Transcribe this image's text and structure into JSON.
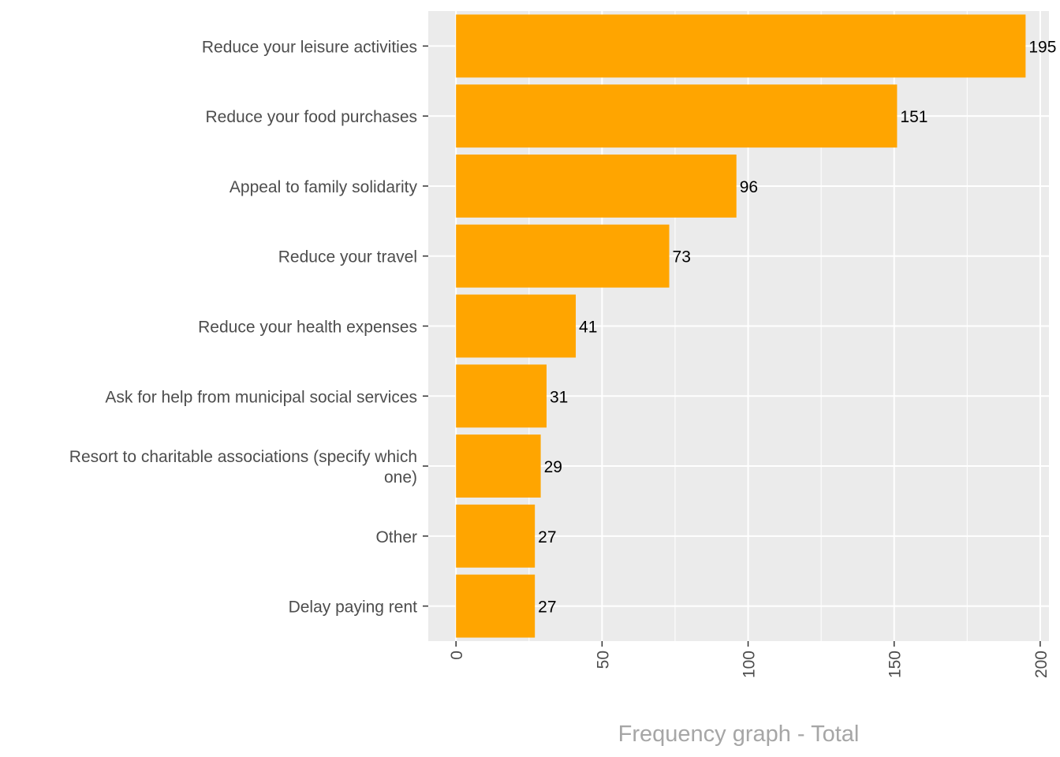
{
  "chart_data": {
    "type": "bar",
    "orientation": "horizontal",
    "categories": [
      "Reduce your leisure activities",
      "Reduce your food purchases",
      "Appeal to family solidarity",
      "Reduce your travel",
      "Reduce your health expenses",
      "Ask for help from municipal social services",
      "Resort to charitable associations (specify which one)",
      "Other",
      "Delay paying rent"
    ],
    "category_lines": [
      [
        "Reduce your leisure activities"
      ],
      [
        "Reduce your food purchases"
      ],
      [
        "Appeal to family solidarity"
      ],
      [
        "Reduce your travel"
      ],
      [
        "Reduce your health expenses"
      ],
      [
        "Ask for help from municipal social services"
      ],
      [
        "Resort to charitable associations (specify which",
        "one)"
      ],
      [
        "Other"
      ],
      [
        "Delay paying rent"
      ]
    ],
    "values": [
      195,
      151,
      96,
      73,
      41,
      31,
      29,
      27,
      27
    ],
    "data_labels": [
      "195",
      "151",
      "96",
      "73",
      "41",
      "31",
      "29",
      "27",
      "27"
    ],
    "xlabel": "Frequency graph - Total",
    "ylabel": "",
    "xlim": [
      -9.5,
      203
    ],
    "x_ticks": [
      0,
      50,
      100,
      150,
      200
    ],
    "x_tick_labels": [
      "0",
      "50",
      "100",
      "150",
      "200"
    ],
    "x_tick_rotation": "vertical",
    "grid": true,
    "legend": "none",
    "colors": {
      "bar": "#FFA500",
      "panel": "#EBEBEB",
      "grid": "#FFFFFF",
      "axis_text": "#4D4D4D",
      "axis_title": "#A6A6A6",
      "value_text": "#000000"
    }
  }
}
